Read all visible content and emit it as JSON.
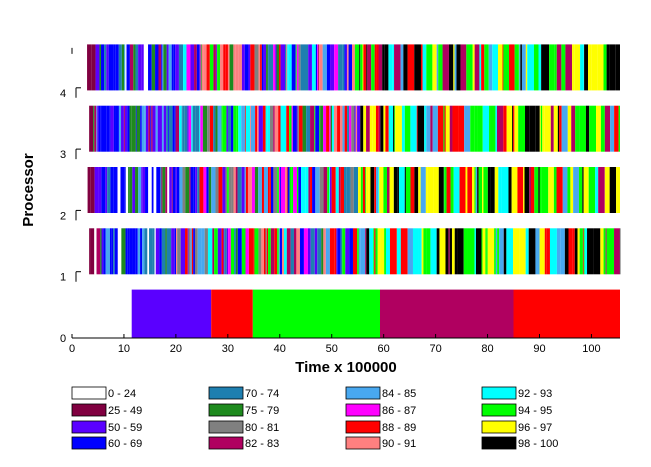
{
  "chart_data": {
    "type": "timeline",
    "xlabel": "Time x 100000",
    "ylabel": "Processor",
    "xlim": [
      0,
      105.5
    ],
    "ylim": [
      0,
      4.7
    ],
    "x_ticks": [
      0,
      10,
      20,
      30,
      40,
      50,
      60,
      70,
      80,
      90,
      100
    ],
    "y_ticks": [
      0,
      1,
      2,
      3,
      4
    ],
    "legend": [
      {
        "label": "0 - 24",
        "color": "#ffffff"
      },
      {
        "label": "25 - 49",
        "color": "#800040"
      },
      {
        "label": "50 - 59",
        "color": "#5a00ff"
      },
      {
        "label": "60 - 69",
        "color": "#0000ff"
      },
      {
        "label": "70 - 74",
        "color": "#1e7fb0"
      },
      {
        "label": "75 - 79",
        "color": "#1e8a1e"
      },
      {
        "label": "80 - 81",
        "color": "#808080"
      },
      {
        "label": "82 - 83",
        "color": "#b00060"
      },
      {
        "label": "84 - 85",
        "color": "#48a8f0"
      },
      {
        "label": "86 - 87",
        "color": "#ff00ff"
      },
      {
        "label": "88 - 89",
        "color": "#ff0000"
      },
      {
        "label": "90 - 91",
        "color": "#ff8080"
      },
      {
        "label": "92 - 93",
        "color": "#00ffff"
      },
      {
        "label": "94 - 95",
        "color": "#00ff00"
      },
      {
        "label": "96 - 97",
        "color": "#ffff00"
      },
      {
        "label": "98 - 100",
        "color": "#000000"
      }
    ],
    "processor_0_segments": [
      {
        "start": 11.5,
        "end": 26.8,
        "range": "50 - 59"
      },
      {
        "start": 26.8,
        "end": 34.8,
        "range": "88 - 89"
      },
      {
        "start": 34.8,
        "end": 59.3,
        "range": "94 - 95"
      },
      {
        "start": 59.3,
        "end": 85.0,
        "range": "82 - 83"
      },
      {
        "start": 85.0,
        "end": 105.5,
        "range": "88 - 89"
      }
    ],
    "processor_tracks": [
      {
        "processor": "1",
        "x_start": 3.3,
        "x_end": 105.5
      },
      {
        "processor": "2",
        "x_start": 3.0,
        "x_end": 105.5
      },
      {
        "processor": "3",
        "x_start": 3.3,
        "x_end": 105.5
      },
      {
        "processor": "4",
        "x_start": 2.9,
        "x_end": 105.5
      }
    ]
  }
}
